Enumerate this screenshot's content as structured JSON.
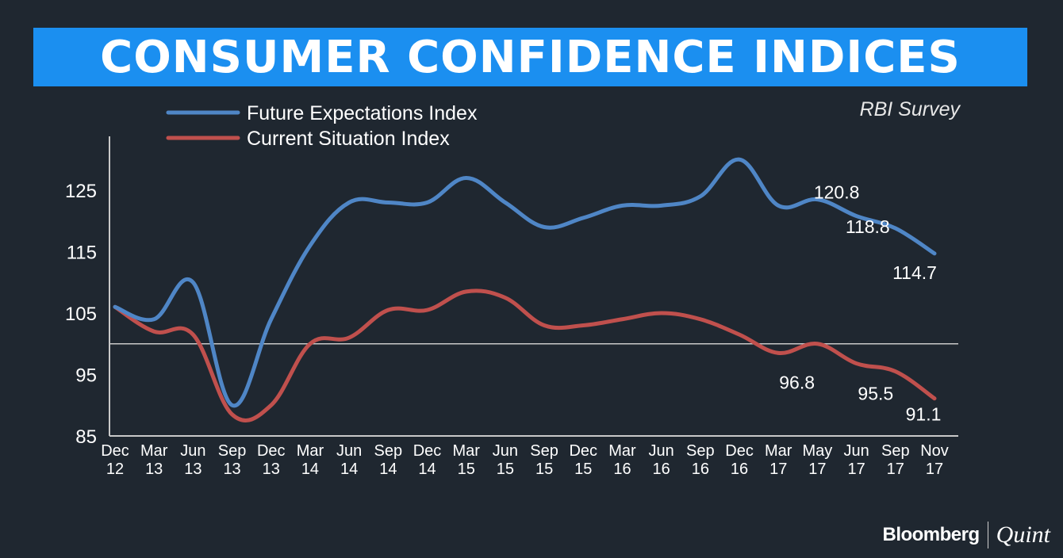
{
  "header": {
    "title": "CONSUMER CONFIDENCE INDICES",
    "source": "RBI Survey"
  },
  "branding": {
    "name_a": "Bloomberg",
    "name_b": "Quint"
  },
  "colors": {
    "background": "#1f2730",
    "title_bar": "#1b8ff0",
    "future_series": "#4f86c6",
    "current_series": "#c0504d",
    "axis": "#c9c9c9",
    "text": "#ffffff"
  },
  "chart_data": {
    "type": "line",
    "title": "CONSUMER CONFIDENCE INDICES",
    "xlabel": "",
    "ylabel": "",
    "ylim": [
      85,
      132
    ],
    "yticks": [
      85,
      95,
      105,
      115,
      125
    ],
    "reference_line": 100,
    "legend_position": "top-left",
    "categories": [
      [
        "Dec",
        "12"
      ],
      [
        "Mar",
        "13"
      ],
      [
        "Jun",
        "13"
      ],
      [
        "Sep",
        "13"
      ],
      [
        "Dec",
        "13"
      ],
      [
        "Mar",
        "14"
      ],
      [
        "Jun",
        "14"
      ],
      [
        "Sep",
        "14"
      ],
      [
        "Dec",
        "14"
      ],
      [
        "Mar",
        "15"
      ],
      [
        "Jun",
        "15"
      ],
      [
        "Sep",
        "15"
      ],
      [
        "Dec",
        "15"
      ],
      [
        "Mar",
        "16"
      ],
      [
        "Jun",
        "16"
      ],
      [
        "Sep",
        "16"
      ],
      [
        "Dec",
        "16"
      ],
      [
        "Mar",
        "17"
      ],
      [
        "May",
        "17"
      ],
      [
        "Jun",
        "17"
      ],
      [
        "Sep",
        "17"
      ],
      [
        "Nov",
        "17"
      ]
    ],
    "series": [
      {
        "name": "Future Expectations Index",
        "color": "#4f86c6",
        "values": [
          106.0,
          104.0,
          110.0,
          90.0,
          104.0,
          116.0,
          123.0,
          123.0,
          123.0,
          127.0,
          123.0,
          119.0,
          120.5,
          122.5,
          122.5,
          124.0,
          130.0,
          122.5,
          123.5,
          120.8,
          118.8,
          114.7
        ],
        "labels": [
          {
            "index": 19,
            "text": "120.8"
          },
          {
            "index": 20,
            "text": "118.8"
          },
          {
            "index": 21,
            "text": "114.7"
          }
        ]
      },
      {
        "name": "Current Situation Index",
        "color": "#c0504d",
        "values": [
          106.0,
          102.0,
          101.5,
          88.5,
          90.0,
          100.0,
          101.0,
          105.5,
          105.5,
          108.5,
          107.5,
          103.0,
          103.0,
          104.0,
          105.0,
          104.0,
          101.5,
          98.5,
          100.0,
          96.8,
          95.5,
          91.1
        ],
        "labels": [
          {
            "index": 19,
            "text": "96.8"
          },
          {
            "index": 20,
            "text": "95.5"
          },
          {
            "index": 21,
            "text": "91.1"
          }
        ]
      }
    ]
  }
}
